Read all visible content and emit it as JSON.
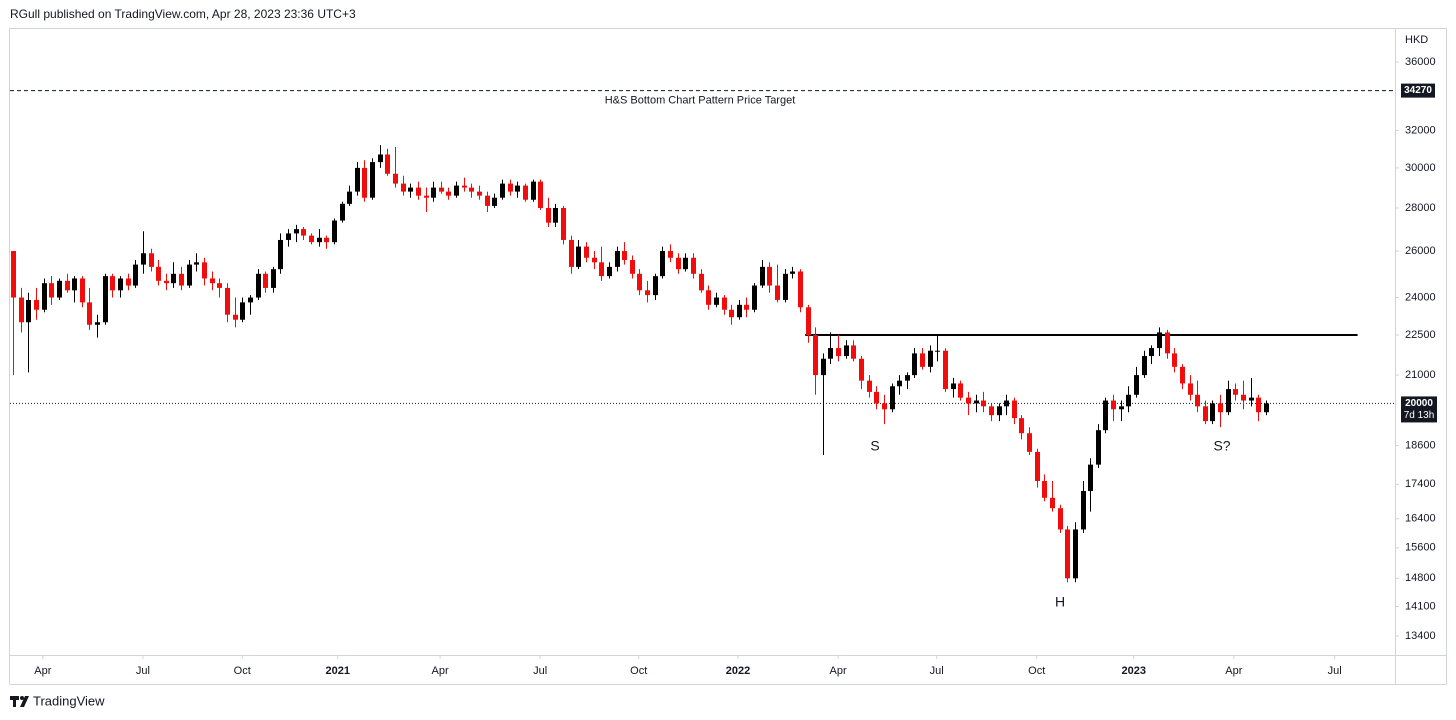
{
  "header": "RGull published on TradingView.com, Apr 28, 2023 23:36 UTC+3",
  "footer": "TradingView",
  "chart_data": {
    "type": "candlestick",
    "currency": "HKD",
    "up_color": "#000000",
    "down_color": "#f20d0d",
    "log_scale": true,
    "grid": false,
    "ylim": [
      12970,
      38170
    ],
    "yticks": [
      13400,
      14100,
      14800,
      15600,
      16400,
      17400,
      18600,
      21000,
      22500,
      24000,
      26000,
      28000,
      30000,
      32000,
      36000
    ],
    "xlim": [
      -0.4,
      180.9
    ],
    "xticks": [
      {
        "value": 3.9,
        "label": "Apr"
      },
      {
        "value": 17.0,
        "label": "Jul"
      },
      {
        "value": 30.0,
        "label": "Oct"
      },
      {
        "value": 42.5,
        "label": "2021"
      },
      {
        "value": 55.9,
        "label": "Apr"
      },
      {
        "value": 69.0,
        "label": "Jul"
      },
      {
        "value": 81.9,
        "label": "Oct"
      },
      {
        "value": 94.9,
        "label": "2022"
      },
      {
        "value": 108.0,
        "label": "Apr"
      },
      {
        "value": 120.9,
        "label": "Jul"
      },
      {
        "value": 134.0,
        "label": "Oct"
      },
      {
        "value": 146.7,
        "label": "2023"
      },
      {
        "value": 159.8,
        "label": "Apr"
      },
      {
        "value": 173.0,
        "label": "Jul"
      }
    ],
    "ohlc": [
      [
        26000,
        26000,
        21000,
        24000
      ],
      [
        24000,
        24400,
        22600,
        23000
      ],
      [
        23000,
        24200,
        21100,
        23900
      ],
      [
        23900,
        24400,
        23100,
        23500
      ],
      [
        23500,
        24800,
        23400,
        24600
      ],
      [
        24600,
        24900,
        23700,
        24000
      ],
      [
        24000,
        24800,
        23900,
        24700
      ],
      [
        24700,
        25000,
        24200,
        24300
      ],
      [
        24300,
        24900,
        23800,
        24800
      ],
      [
        24800,
        24900,
        23600,
        23800
      ],
      [
        23800,
        24400,
        22700,
        22900
      ],
      [
        22900,
        23300,
        22400,
        23000
      ],
      [
        23000,
        25000,
        22900,
        24900
      ],
      [
        24900,
        25000,
        24000,
        24300
      ],
      [
        24300,
        24900,
        24000,
        24800
      ],
      [
        24800,
        25000,
        24300,
        24500
      ],
      [
        24500,
        25600,
        24400,
        25400
      ],
      [
        25400,
        26900,
        25000,
        25900
      ],
      [
        25900,
        26100,
        25100,
        25300
      ],
      [
        25300,
        25600,
        24500,
        24700
      ],
      [
        24700,
        25000,
        24300,
        24600
      ],
      [
        24600,
        25500,
        24400,
        25000
      ],
      [
        25000,
        25300,
        24300,
        24500
      ],
      [
        24500,
        25600,
        24400,
        25400
      ],
      [
        25400,
        25900,
        25100,
        25500
      ],
      [
        25500,
        25700,
        24500,
        24800
      ],
      [
        24800,
        25100,
        24300,
        24600
      ],
      [
        24600,
        24800,
        24000,
        24400
      ],
      [
        24400,
        24600,
        23000,
        23300
      ],
      [
        23300,
        24000,
        22800,
        23100
      ],
      [
        23100,
        24000,
        23000,
        23800
      ],
      [
        23800,
        24100,
        23300,
        24000
      ],
      [
        24000,
        25200,
        23900,
        25000
      ],
      [
        25000,
        25100,
        24200,
        24400
      ],
      [
        24400,
        25300,
        24200,
        25200
      ],
      [
        25200,
        26800,
        25000,
        26500
      ],
      [
        26500,
        27000,
        26200,
        26800
      ],
      [
        26800,
        27200,
        26400,
        27000
      ],
      [
        27000,
        27100,
        26500,
        26700
      ],
      [
        26700,
        26800,
        26300,
        26400
      ],
      [
        26400,
        27000,
        26200,
        26600
      ],
      [
        26600,
        26700,
        26100,
        26400
      ],
      [
        26400,
        27500,
        26300,
        27400
      ],
      [
        27400,
        28300,
        27300,
        28200
      ],
      [
        28200,
        29100,
        28100,
        28800
      ],
      [
        28800,
        30300,
        28600,
        30000
      ],
      [
        30000,
        30400,
        28300,
        28500
      ],
      [
        28500,
        30500,
        28400,
        30300
      ],
      [
        30300,
        31200,
        30000,
        30700
      ],
      [
        30700,
        31000,
        29600,
        29700
      ],
      [
        29700,
        31100,
        29000,
        29200
      ],
      [
        29200,
        29600,
        28600,
        28800
      ],
      [
        28800,
        29200,
        28500,
        29000
      ],
      [
        29000,
        29300,
        28400,
        28600
      ],
      [
        28600,
        29000,
        27800,
        28500
      ],
      [
        28500,
        29300,
        28300,
        29000
      ],
      [
        29000,
        29300,
        28700,
        28800
      ],
      [
        28800,
        29000,
        28400,
        28600
      ],
      [
        28600,
        29300,
        28500,
        29100
      ],
      [
        29100,
        29500,
        28800,
        29000
      ],
      [
        29000,
        29200,
        28500,
        28800
      ],
      [
        28800,
        29100,
        28400,
        28600
      ],
      [
        28600,
        28800,
        27800,
        28100
      ],
      [
        28100,
        28700,
        28000,
        28500
      ],
      [
        28500,
        29400,
        28400,
        29200
      ],
      [
        29200,
        29400,
        28600,
        28800
      ],
      [
        28800,
        29300,
        28500,
        29100
      ],
      [
        29100,
        29200,
        28300,
        28400
      ],
      [
        28400,
        29400,
        28300,
        29300
      ],
      [
        29300,
        29400,
        27900,
        28000
      ],
      [
        28000,
        28500,
        27100,
        27300
      ],
      [
        27300,
        28200,
        27100,
        28000
      ],
      [
        28000,
        28100,
        26300,
        26500
      ],
      [
        26500,
        26700,
        25000,
        25300
      ],
      [
        25300,
        26500,
        25200,
        26200
      ],
      [
        26200,
        26400,
        25500,
        25700
      ],
      [
        25700,
        26000,
        25200,
        25500
      ],
      [
        25500,
        26200,
        24700,
        24900
      ],
      [
        24900,
        25500,
        24800,
        25300
      ],
      [
        25300,
        26200,
        25100,
        26000
      ],
      [
        26000,
        26400,
        25400,
        25600
      ],
      [
        25600,
        25800,
        24800,
        25000
      ],
      [
        25000,
        25200,
        24100,
        24300
      ],
      [
        24300,
        24700,
        23800,
        24100
      ],
      [
        24100,
        25000,
        23900,
        24900
      ],
      [
        24900,
        26200,
        24800,
        26000
      ],
      [
        26000,
        26300,
        25500,
        25700
      ],
      [
        25700,
        25900,
        25000,
        25200
      ],
      [
        25200,
        25900,
        25100,
        25700
      ],
      [
        25700,
        25900,
        24800,
        25000
      ],
      [
        25000,
        25200,
        24200,
        24300
      ],
      [
        24300,
        24500,
        23500,
        23700
      ],
      [
        23700,
        24200,
        23600,
        24000
      ],
      [
        24000,
        24100,
        23300,
        23500
      ],
      [
        23500,
        23700,
        22900,
        23200
      ],
      [
        23200,
        23900,
        23100,
        23700
      ],
      [
        23700,
        24000,
        23200,
        23500
      ],
      [
        23500,
        24600,
        23400,
        24500
      ],
      [
        24500,
        25600,
        24400,
        25300
      ],
      [
        25300,
        25500,
        24200,
        24500
      ],
      [
        24500,
        25400,
        23800,
        23900
      ],
      [
        23900,
        25200,
        23800,
        25000
      ],
      [
        25000,
        25300,
        24800,
        25100
      ],
      [
        25100,
        25200,
        23400,
        23600
      ],
      [
        23600,
        23700,
        22200,
        22500
      ],
      [
        22500,
        22800,
        20300,
        21000
      ],
      [
        21000,
        21800,
        18300,
        21600
      ],
      [
        21600,
        22600,
        21400,
        22000
      ],
      [
        22000,
        22500,
        21500,
        21700
      ],
      [
        21700,
        22300,
        21600,
        22100
      ],
      [
        22100,
        22300,
        21500,
        21600
      ],
      [
        21600,
        21700,
        20500,
        20800
      ],
      [
        20800,
        21000,
        20200,
        20400
      ],
      [
        20400,
        20600,
        19800,
        20000
      ],
      [
        20000,
        20300,
        19300,
        19800
      ],
      [
        19800,
        20700,
        19700,
        20600
      ],
      [
        20600,
        21000,
        20300,
        20800
      ],
      [
        20800,
        21100,
        20500,
        21000
      ],
      [
        21000,
        22000,
        20900,
        21800
      ],
      [
        21800,
        22000,
        21200,
        21300
      ],
      [
        21300,
        22100,
        21100,
        21900
      ],
      [
        21900,
        22500,
        21500,
        21900
      ],
      [
        21900,
        22000,
        20400,
        20500
      ],
      [
        20500,
        20900,
        20200,
        20700
      ],
      [
        20700,
        20800,
        20100,
        20200
      ],
      [
        20200,
        20400,
        19600,
        20000
      ],
      [
        20000,
        20300,
        19700,
        20100
      ],
      [
        20100,
        20400,
        19700,
        19900
      ],
      [
        19900,
        20000,
        19400,
        19600
      ],
      [
        19600,
        20000,
        19400,
        19900
      ],
      [
        19900,
        20300,
        19600,
        20100
      ],
      [
        20100,
        20200,
        19300,
        19500
      ],
      [
        19500,
        19600,
        18800,
        19000
      ],
      [
        19000,
        19200,
        18300,
        18400
      ],
      [
        18400,
        18500,
        17300,
        17500
      ],
      [
        17500,
        17700,
        16900,
        17000
      ],
      [
        17000,
        17500,
        16600,
        16700
      ],
      [
        16700,
        16800,
        16000,
        16100
      ],
      [
        16100,
        16200,
        14700,
        14800
      ],
      [
        14800,
        16300,
        14700,
        16100
      ],
      [
        16100,
        17500,
        16000,
        17200
      ],
      [
        17200,
        18200,
        16600,
        18000
      ],
      [
        18000,
        19300,
        17900,
        19100
      ],
      [
        19100,
        20200,
        19000,
        20100
      ],
      [
        20100,
        20300,
        19400,
        19800
      ],
      [
        19800,
        20100,
        19400,
        19900
      ],
      [
        19900,
        20600,
        19700,
        20300
      ],
      [
        20300,
        21300,
        20200,
        21000
      ],
      [
        21000,
        21900,
        20900,
        21700
      ],
      [
        21700,
        22100,
        21400,
        22000
      ],
      [
        22000,
        22800,
        21700,
        22600
      ],
      [
        22600,
        22700,
        21600,
        21800
      ],
      [
        21800,
        22000,
        21100,
        21300
      ],
      [
        21300,
        21400,
        20500,
        20700
      ],
      [
        20700,
        21000,
        20100,
        20300
      ],
      [
        20300,
        20800,
        19700,
        19900
      ],
      [
        19900,
        20100,
        19300,
        19400
      ],
      [
        19400,
        20100,
        19300,
        20000
      ],
      [
        20000,
        20300,
        19200,
        19700
      ],
      [
        19700,
        20800,
        19600,
        20500
      ],
      [
        20500,
        20700,
        20100,
        20300
      ],
      [
        20300,
        20800,
        19800,
        20100
      ],
      [
        20100,
        20900,
        19900,
        20200
      ],
      [
        20200,
        20300,
        19400,
        19700
      ],
      [
        19700,
        20100,
        19600,
        20000
      ]
    ],
    "target": 34270,
    "target_label": "H&S Bottom Chart Pattern Price Target",
    "neckline": 22500,
    "neckline_x": [
      103.7,
      176.0
    ],
    "last_price": 20000,
    "countdown": "7d 13h",
    "annotations": [
      "S",
      "H",
      "S?"
    ]
  }
}
